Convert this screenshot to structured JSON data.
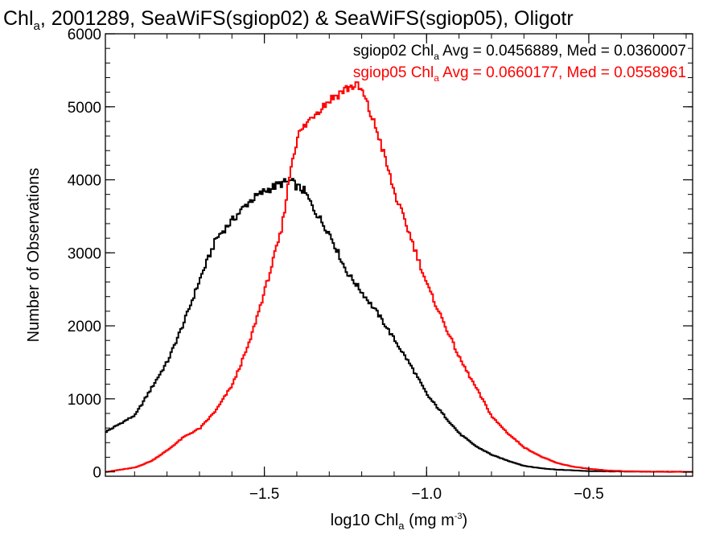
{
  "chart_data": {
    "type": "line",
    "step": true,
    "title": {
      "pre": "Chl",
      "sub": "a",
      "post": ", 2001289, SeaWiFS(sgiop02) & SeaWiFS(sgiop05), Oligotr"
    },
    "xlabel": {
      "pre": "log10 Chl",
      "sub": "a",
      "post": " (mg m",
      "sup": "-3",
      "end": ")"
    },
    "ylabel": "Number of Observations",
    "xlim": [
      -1.99,
      -0.18
    ],
    "ylim": [
      -60,
      6000
    ],
    "xticks": [
      {
        "value": -1.5,
        "label": "−1.5"
      },
      {
        "value": -1.0,
        "label": "−1.0"
      },
      {
        "value": -0.5,
        "label": "−0.5"
      }
    ],
    "yticks": [
      {
        "value": 0,
        "label": "0"
      },
      {
        "value": 1000,
        "label": "1000"
      },
      {
        "value": 2000,
        "label": "2000"
      },
      {
        "value": 3000,
        "label": "3000"
      },
      {
        "value": 4000,
        "label": "4000"
      },
      {
        "value": 5000,
        "label": "5000"
      },
      {
        "value": 6000,
        "label": "6000"
      }
    ],
    "x_minor_step": 0.1,
    "y_minor_step": 200,
    "series": [
      {
        "name": "sgiop02",
        "color": "#000000",
        "legend": {
          "pre": "sgiop02 Chl",
          "sub": "a",
          "post": " Avg = 0.0456889, Med = 0.0360007"
        },
        "x": [
          -1.99,
          -1.9,
          -1.85,
          -1.8,
          -1.75,
          -1.7,
          -1.65,
          -1.6,
          -1.55,
          -1.5,
          -1.45,
          -1.42,
          -1.4,
          -1.38,
          -1.35,
          -1.3,
          -1.25,
          -1.2,
          -1.15,
          -1.1,
          -1.05,
          -1.0,
          -0.95,
          -0.9,
          -0.85,
          -0.8,
          -0.75,
          -0.7,
          -0.65,
          -0.6,
          -0.55,
          -0.5,
          -0.4,
          -0.3,
          -0.18
        ],
        "y": [
          550,
          780,
          1150,
          1520,
          2050,
          2650,
          3200,
          3450,
          3700,
          3850,
          3950,
          3980,
          3900,
          3850,
          3600,
          3250,
          2750,
          2450,
          2150,
          1800,
          1450,
          1050,
          780,
          520,
          350,
          230,
          150,
          80,
          50,
          30,
          20,
          10,
          5,
          2,
          0
        ]
      },
      {
        "name": "sgiop05",
        "color": "#ff0000",
        "legend": {
          "pre": "sgiop05 Chl",
          "sub": "a",
          "post": " Avg = 0.0660177, Med = 0.0558961"
        },
        "x": [
          -1.99,
          -1.9,
          -1.85,
          -1.8,
          -1.75,
          -1.7,
          -1.65,
          -1.6,
          -1.55,
          -1.5,
          -1.45,
          -1.42,
          -1.4,
          -1.35,
          -1.3,
          -1.25,
          -1.22,
          -1.2,
          -1.15,
          -1.1,
          -1.05,
          -1.0,
          -0.95,
          -0.9,
          -0.85,
          -0.8,
          -0.75,
          -0.7,
          -0.65,
          -0.6,
          -0.55,
          -0.5,
          -0.45,
          -0.4,
          -0.3,
          -0.18
        ],
        "y": [
          0,
          60,
          150,
          300,
          480,
          600,
          850,
          1200,
          1750,
          2500,
          3300,
          4200,
          4600,
          4900,
          5100,
          5250,
          5300,
          5200,
          4600,
          3800,
          3200,
          2550,
          2050,
          1550,
          1150,
          750,
          520,
          330,
          210,
          120,
          70,
          40,
          20,
          10,
          2,
          0
        ]
      }
    ]
  }
}
